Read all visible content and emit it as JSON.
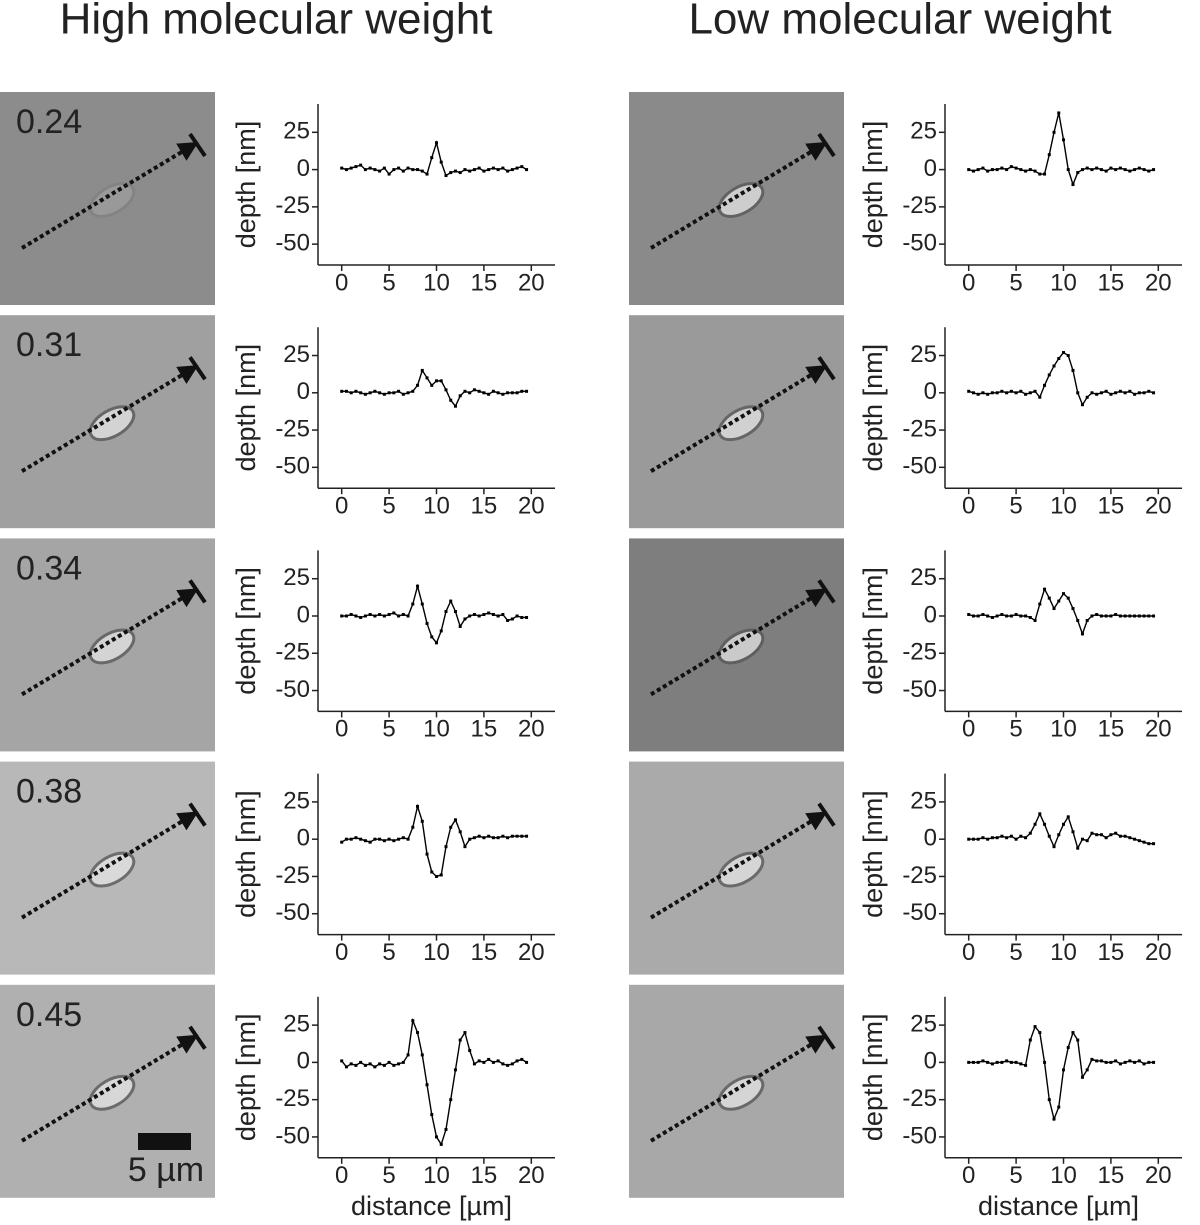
{
  "titles": [
    "High molecular weight",
    "Low molecular weight"
  ],
  "row_labels": [
    "0.24",
    "0.31",
    "0.34",
    "0.38",
    "0.45"
  ],
  "scale_bar": "5 µm",
  "chart_data": [
    {
      "type": "line",
      "ylabel": "depth [nm]",
      "color": "#000000",
      "xlim": [
        -2.5,
        22.5
      ],
      "ylim": [
        -64,
        44
      ],
      "xticks": [
        0,
        5,
        10,
        15,
        20
      ],
      "yticks": [
        -50,
        -25,
        0,
        25
      ],
      "x": [
        0,
        0.5,
        1,
        1.5,
        2,
        2.5,
        3,
        3.5,
        4,
        4.5,
        5,
        5.5,
        6,
        6.5,
        7,
        7.5,
        8,
        8.5,
        9,
        9.5,
        10,
        10.5,
        11,
        11.5,
        12,
        12.5,
        13,
        13.5,
        14,
        14.5,
        15,
        15.5,
        16,
        16.5,
        17,
        17.5,
        18,
        18.5,
        19,
        19.5
      ],
      "values": [
        1,
        0,
        1,
        2,
        3,
        0,
        1,
        0,
        -1,
        1,
        -3,
        0,
        1,
        -1,
        1,
        0,
        0,
        -1,
        -3,
        8,
        18,
        5,
        -4,
        -2,
        -1,
        -2,
        0,
        -1,
        0,
        1,
        -1,
        0,
        1,
        0,
        1,
        -1,
        0,
        1,
        2,
        0
      ]
    },
    {
      "type": "line",
      "ylabel": "depth [nm]",
      "color": "#000000",
      "xlim": [
        -2.5,
        22.5
      ],
      "ylim": [
        -64,
        44
      ],
      "xticks": [
        0,
        5,
        10,
        15,
        20
      ],
      "yticks": [
        -50,
        -25,
        0,
        25
      ],
      "x": [
        0,
        0.5,
        1,
        1.5,
        2,
        2.5,
        3,
        3.5,
        4,
        4.5,
        5,
        5.5,
        6,
        6.5,
        7,
        7.5,
        8,
        8.5,
        9,
        9.5,
        10,
        10.5,
        11,
        11.5,
        12,
        12.5,
        13,
        13.5,
        14,
        14.5,
        15,
        15.5,
        16,
        16.5,
        17,
        17.5,
        18,
        18.5,
        19,
        19.5
      ],
      "values": [
        1,
        1,
        0,
        1,
        0,
        -1,
        0,
        1,
        0,
        -1,
        0,
        0,
        1,
        -1,
        0,
        1,
        5,
        15,
        10,
        5,
        8,
        8,
        2,
        -5,
        -9,
        -2,
        1,
        0,
        2,
        1,
        0,
        -1,
        1,
        0,
        -1,
        0,
        0,
        0,
        1,
        1
      ]
    },
    {
      "type": "line",
      "ylabel": "depth [nm]",
      "color": "#000000",
      "xlim": [
        -2.5,
        22.5
      ],
      "ylim": [
        -64,
        44
      ],
      "xticks": [
        0,
        5,
        10,
        15,
        20
      ],
      "yticks": [
        -50,
        -25,
        0,
        25
      ],
      "x": [
        0,
        0.5,
        1,
        1.5,
        2,
        2.5,
        3,
        3.5,
        4,
        4.5,
        5,
        5.5,
        6,
        6.5,
        7,
        7.5,
        8,
        8.5,
        9,
        9.5,
        10,
        10.5,
        11,
        11.5,
        12,
        12.5,
        13,
        13.5,
        14,
        14.5,
        15,
        15.5,
        16,
        16.5,
        17,
        17.5,
        18,
        18.5,
        19,
        19.5
      ],
      "values": [
        0,
        0,
        1,
        0,
        -1,
        0,
        1,
        0,
        1,
        0,
        1,
        2,
        0,
        1,
        0,
        8,
        20,
        8,
        -5,
        -14,
        -18,
        -10,
        3,
        10,
        3,
        -7,
        -2,
        0,
        1,
        0,
        1,
        2,
        1,
        0,
        1,
        -3,
        -2,
        0,
        -1,
        -1
      ]
    },
    {
      "type": "line",
      "ylabel": "depth [nm]",
      "color": "#000000",
      "xlim": [
        -2.5,
        22.5
      ],
      "ylim": [
        -64,
        44
      ],
      "xticks": [
        0,
        5,
        10,
        15,
        20
      ],
      "yticks": [
        -50,
        -25,
        0,
        25
      ],
      "x": [
        0,
        0.5,
        1,
        1.5,
        2,
        2.5,
        3,
        3.5,
        4,
        4.5,
        5,
        5.5,
        6,
        6.5,
        7,
        7.5,
        8,
        8.5,
        9,
        9.5,
        10,
        10.5,
        11,
        11.5,
        12,
        12.5,
        13,
        13.5,
        14,
        14.5,
        15,
        15.5,
        16,
        16.5,
        17,
        17.5,
        18,
        18.5,
        19,
        19.5
      ],
      "values": [
        -2,
        0,
        0,
        1,
        0,
        -1,
        -2,
        0,
        0,
        -1,
        0,
        -1,
        0,
        1,
        0,
        8,
        22,
        12,
        -10,
        -22,
        -25,
        -24,
        -5,
        8,
        13,
        5,
        -5,
        0,
        1,
        2,
        1,
        2,
        1,
        1,
        2,
        1,
        2,
        2,
        2,
        2
      ]
    },
    {
      "type": "line",
      "ylabel": "depth [nm]",
      "xlabel": "distance [µm]",
      "color": "#000000",
      "xlim": [
        -2.5,
        22.5
      ],
      "ylim": [
        -64,
        44
      ],
      "xticks": [
        0,
        5,
        10,
        15,
        20
      ],
      "yticks": [
        -50,
        -25,
        0,
        25
      ],
      "x": [
        0,
        0.5,
        1,
        1.5,
        2,
        2.5,
        3,
        3.5,
        4,
        4.5,
        5,
        5.5,
        6,
        6.5,
        7,
        7.5,
        8,
        8.5,
        9,
        9.5,
        10,
        10.5,
        11,
        11.5,
        12,
        12.5,
        13,
        13.5,
        14,
        14.5,
        15,
        15.5,
        16,
        16.5,
        17,
        17.5,
        18,
        18.5,
        19,
        19.5
      ],
      "values": [
        1,
        -3,
        -1,
        -2,
        0,
        -2,
        -1,
        -3,
        -1,
        -2,
        0,
        -2,
        -1,
        0,
        5,
        28,
        20,
        5,
        -15,
        -35,
        -50,
        -55,
        -45,
        -25,
        -5,
        15,
        20,
        8,
        -1,
        1,
        0,
        2,
        0,
        1,
        -1,
        -2,
        -1,
        1,
        2,
        0
      ]
    },
    {
      "type": "line",
      "ylabel": "depth [nm]",
      "color": "#000000",
      "xlim": [
        -2.5,
        22.5
      ],
      "ylim": [
        -64,
        44
      ],
      "xticks": [
        0,
        5,
        10,
        15,
        20
      ],
      "yticks": [
        -50,
        -25,
        0,
        25
      ],
      "x": [
        0,
        0.5,
        1,
        1.5,
        2,
        2.5,
        3,
        3.5,
        4,
        4.5,
        5,
        5.5,
        6,
        6.5,
        7,
        7.5,
        8,
        8.5,
        9,
        9.5,
        10,
        10.5,
        11,
        11.5,
        12,
        12.5,
        13,
        13.5,
        14,
        14.5,
        15,
        15.5,
        16,
        16.5,
        17,
        17.5,
        18,
        18.5,
        19,
        19.5
      ],
      "values": [
        0,
        -1,
        0,
        1,
        -1,
        0,
        0,
        1,
        0,
        2,
        1,
        0,
        -1,
        0,
        -1,
        -3,
        -3,
        10,
        25,
        38,
        20,
        0,
        -10,
        -2,
        0,
        1,
        0,
        1,
        0,
        -1,
        1,
        0,
        1,
        0,
        -1,
        0,
        1,
        0,
        -1,
        0
      ]
    },
    {
      "type": "line",
      "ylabel": "depth [nm]",
      "color": "#000000",
      "xlim": [
        -2.5,
        22.5
      ],
      "ylim": [
        -64,
        44
      ],
      "xticks": [
        0,
        5,
        10,
        15,
        20
      ],
      "yticks": [
        -50,
        -25,
        0,
        25
      ],
      "x": [
        0,
        0.5,
        1,
        1.5,
        2,
        2.5,
        3,
        3.5,
        4,
        4.5,
        5,
        5.5,
        6,
        6.5,
        7,
        7.5,
        8,
        8.5,
        9,
        9.5,
        10,
        10.5,
        11,
        11.5,
        12,
        12.5,
        13,
        13.5,
        14,
        14.5,
        15,
        15.5,
        16,
        16.5,
        17,
        17.5,
        18,
        18.5,
        19,
        19.5
      ],
      "values": [
        1,
        0,
        -1,
        0,
        -1,
        0,
        0,
        1,
        0,
        1,
        0,
        1,
        -1,
        0,
        1,
        -3,
        5,
        12,
        18,
        23,
        27,
        25,
        15,
        0,
        -8,
        -3,
        0,
        -1,
        0,
        1,
        -1,
        0,
        1,
        0,
        1,
        -1,
        0,
        0,
        1,
        0
      ]
    },
    {
      "type": "line",
      "ylabel": "depth [nm]",
      "color": "#000000",
      "xlim": [
        -2.5,
        22.5
      ],
      "ylim": [
        -64,
        44
      ],
      "xticks": [
        0,
        5,
        10,
        15,
        20
      ],
      "yticks": [
        -50,
        -25,
        0,
        25
      ],
      "x": [
        0,
        0.5,
        1,
        1.5,
        2,
        2.5,
        3,
        3.5,
        4,
        4.5,
        5,
        5.5,
        6,
        6.5,
        7,
        7.5,
        8,
        8.5,
        9,
        9.5,
        10,
        10.5,
        11,
        11.5,
        12,
        12.5,
        13,
        13.5,
        14,
        14.5,
        15,
        15.5,
        16,
        16.5,
        17,
        17.5,
        18,
        18.5,
        19,
        19.5
      ],
      "values": [
        1,
        0,
        0,
        1,
        0,
        -1,
        0,
        1,
        0,
        0,
        1,
        0,
        0,
        -1,
        -3,
        8,
        18,
        12,
        5,
        10,
        15,
        12,
        5,
        -3,
        -12,
        -3,
        0,
        1,
        0,
        0,
        0,
        1,
        0,
        0,
        0,
        0,
        0,
        0,
        0,
        0
      ]
    },
    {
      "type": "line",
      "ylabel": "depth [nm]",
      "color": "#000000",
      "xlim": [
        -2.5,
        22.5
      ],
      "ylim": [
        -64,
        44
      ],
      "xticks": [
        0,
        5,
        10,
        15,
        20
      ],
      "yticks": [
        -50,
        -25,
        0,
        25
      ],
      "x": [
        0,
        0.5,
        1,
        1.5,
        2,
        2.5,
        3,
        3.5,
        4,
        4.5,
        5,
        5.5,
        6,
        6.5,
        7,
        7.5,
        8,
        8.5,
        9,
        9.5,
        10,
        10.5,
        11,
        11.5,
        12,
        12.5,
        13,
        13.5,
        14,
        14.5,
        15,
        15.5,
        16,
        16.5,
        17,
        17.5,
        18,
        18.5,
        19,
        19.5
      ],
      "values": [
        0,
        0,
        0,
        1,
        0,
        1,
        1,
        2,
        1,
        2,
        0,
        2,
        1,
        4,
        10,
        17,
        10,
        2,
        -5,
        3,
        10,
        15,
        5,
        -6,
        0,
        -1,
        4,
        3,
        3,
        1,
        3,
        4,
        2,
        2,
        1,
        0,
        -1,
        -2,
        -3,
        -3
      ]
    },
    {
      "type": "line",
      "ylabel": "depth [nm]",
      "xlabel": "distance [µm]",
      "color": "#000000",
      "xlim": [
        -2.5,
        22.5
      ],
      "ylim": [
        -64,
        44
      ],
      "xticks": [
        0,
        5,
        10,
        15,
        20
      ],
      "yticks": [
        -50,
        -25,
        0,
        25
      ],
      "x": [
        0,
        0.5,
        1,
        1.5,
        2,
        2.5,
        3,
        3.5,
        4,
        4.5,
        5,
        5.5,
        6,
        6.5,
        7,
        7.5,
        8,
        8.5,
        9,
        9.5,
        10,
        10.5,
        11,
        11.5,
        12,
        12.5,
        13,
        13.5,
        14,
        14.5,
        15,
        15.5,
        16,
        16.5,
        17,
        17.5,
        18,
        18.5,
        19,
        19.5
      ],
      "values": [
        0,
        0,
        0,
        1,
        0,
        -1,
        0,
        0,
        1,
        0,
        0,
        -1,
        -2,
        15,
        24,
        20,
        0,
        -25,
        -38,
        -30,
        -5,
        10,
        20,
        15,
        -10,
        -5,
        2,
        1,
        1,
        0,
        0,
        1,
        -1,
        0,
        1,
        0,
        1,
        -1,
        0,
        0
      ]
    }
  ]
}
